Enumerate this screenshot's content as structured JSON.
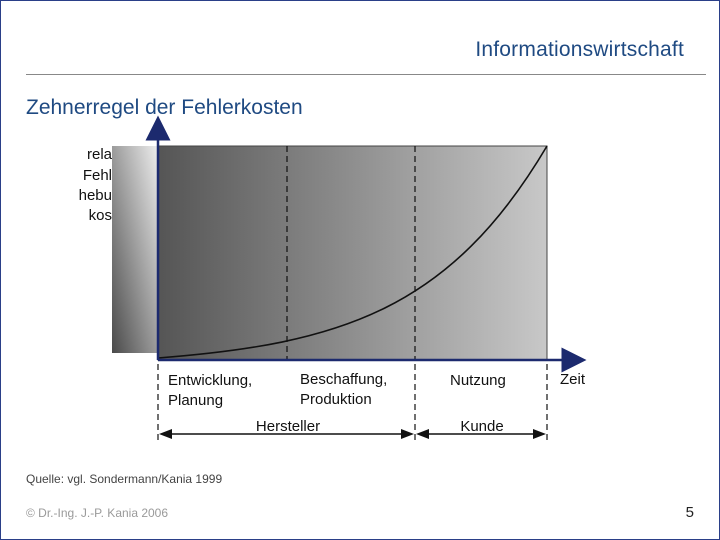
{
  "header": {
    "title": "Informationswirtschaft"
  },
  "slide": {
    "title": "Zehnerregel der Fehlerkosten"
  },
  "diagram": {
    "y_axis_label_lines": [
      "rela",
      "Fehl",
      "hebu",
      "kos"
    ],
    "x_axis_label": "Zeit",
    "phases": [
      {
        "line1": "Entwicklung,",
        "line2": "Planung"
      },
      {
        "line1": "Beschaffung,",
        "line2": "Produktion"
      },
      {
        "line1": "Nutzung",
        "line2": ""
      }
    ],
    "responsibility": [
      "Hersteller",
      "Kunde"
    ],
    "colors": {
      "axis": "#1c2a6e",
      "gradient_dark": "#555555",
      "gradient_light": "#c8c8c8",
      "overlay_dark": "#4a4a4a",
      "overlay_light": "#ededed"
    }
  },
  "footer": {
    "source": "Quelle: vgl. Sondermann/Kania 1999",
    "copyright": "© Dr.-Ing. J.-P. Kania 2006",
    "page": "5"
  }
}
